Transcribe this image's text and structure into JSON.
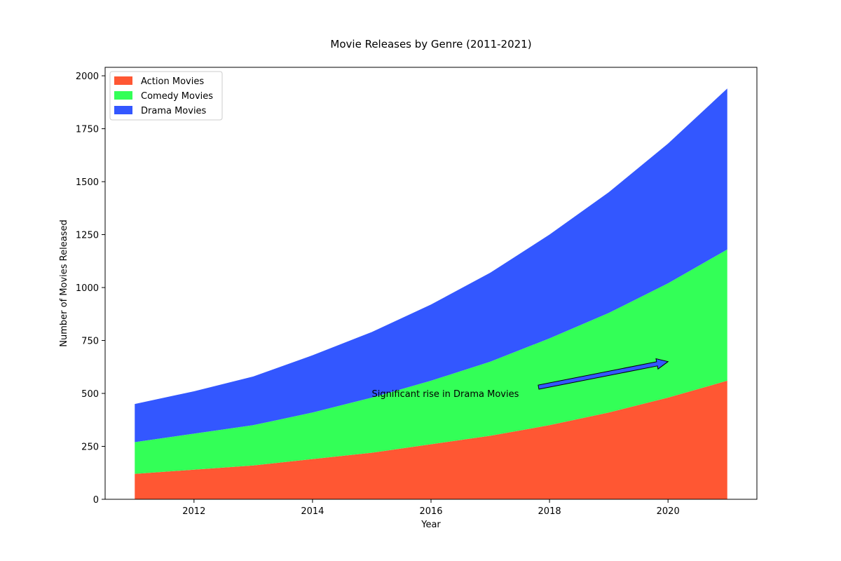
{
  "chart_data": {
    "type": "area",
    "stacked": true,
    "title": "Movie Releases by Genre (2011-2021)",
    "xlabel": "Year",
    "ylabel": "Number of Movies Released",
    "x": [
      2011,
      2012,
      2013,
      2014,
      2015,
      2016,
      2017,
      2018,
      2019,
      2020,
      2021
    ],
    "xlim": [
      2010.5,
      2021.5
    ],
    "ylim": [
      0,
      2040
    ],
    "x_ticks": [
      2012,
      2014,
      2016,
      2018,
      2020
    ],
    "y_ticks": [
      0,
      250,
      500,
      750,
      1000,
      1250,
      1500,
      1750,
      2000
    ],
    "grid": false,
    "legend_position": "top-left",
    "series": [
      {
        "name": "Action Movies",
        "color": "#ff5733",
        "values": [
          120,
          140,
          160,
          190,
          220,
          260,
          300,
          350,
          410,
          480,
          560
        ]
      },
      {
        "name": "Comedy Movies",
        "color": "#33ff57",
        "values": [
          150,
          170,
          190,
          220,
          260,
          300,
          350,
          410,
          470,
          540,
          620
        ]
      },
      {
        "name": "Drama Movies",
        "color": "#3357ff",
        "values": [
          180,
          200,
          230,
          270,
          310,
          360,
          420,
          490,
          570,
          660,
          760
        ]
      }
    ],
    "annotations": [
      {
        "text": "Significant rise in Drama Movies",
        "point": [
          2020,
          650
        ],
        "text_at": [
          2015,
          500
        ]
      }
    ]
  }
}
